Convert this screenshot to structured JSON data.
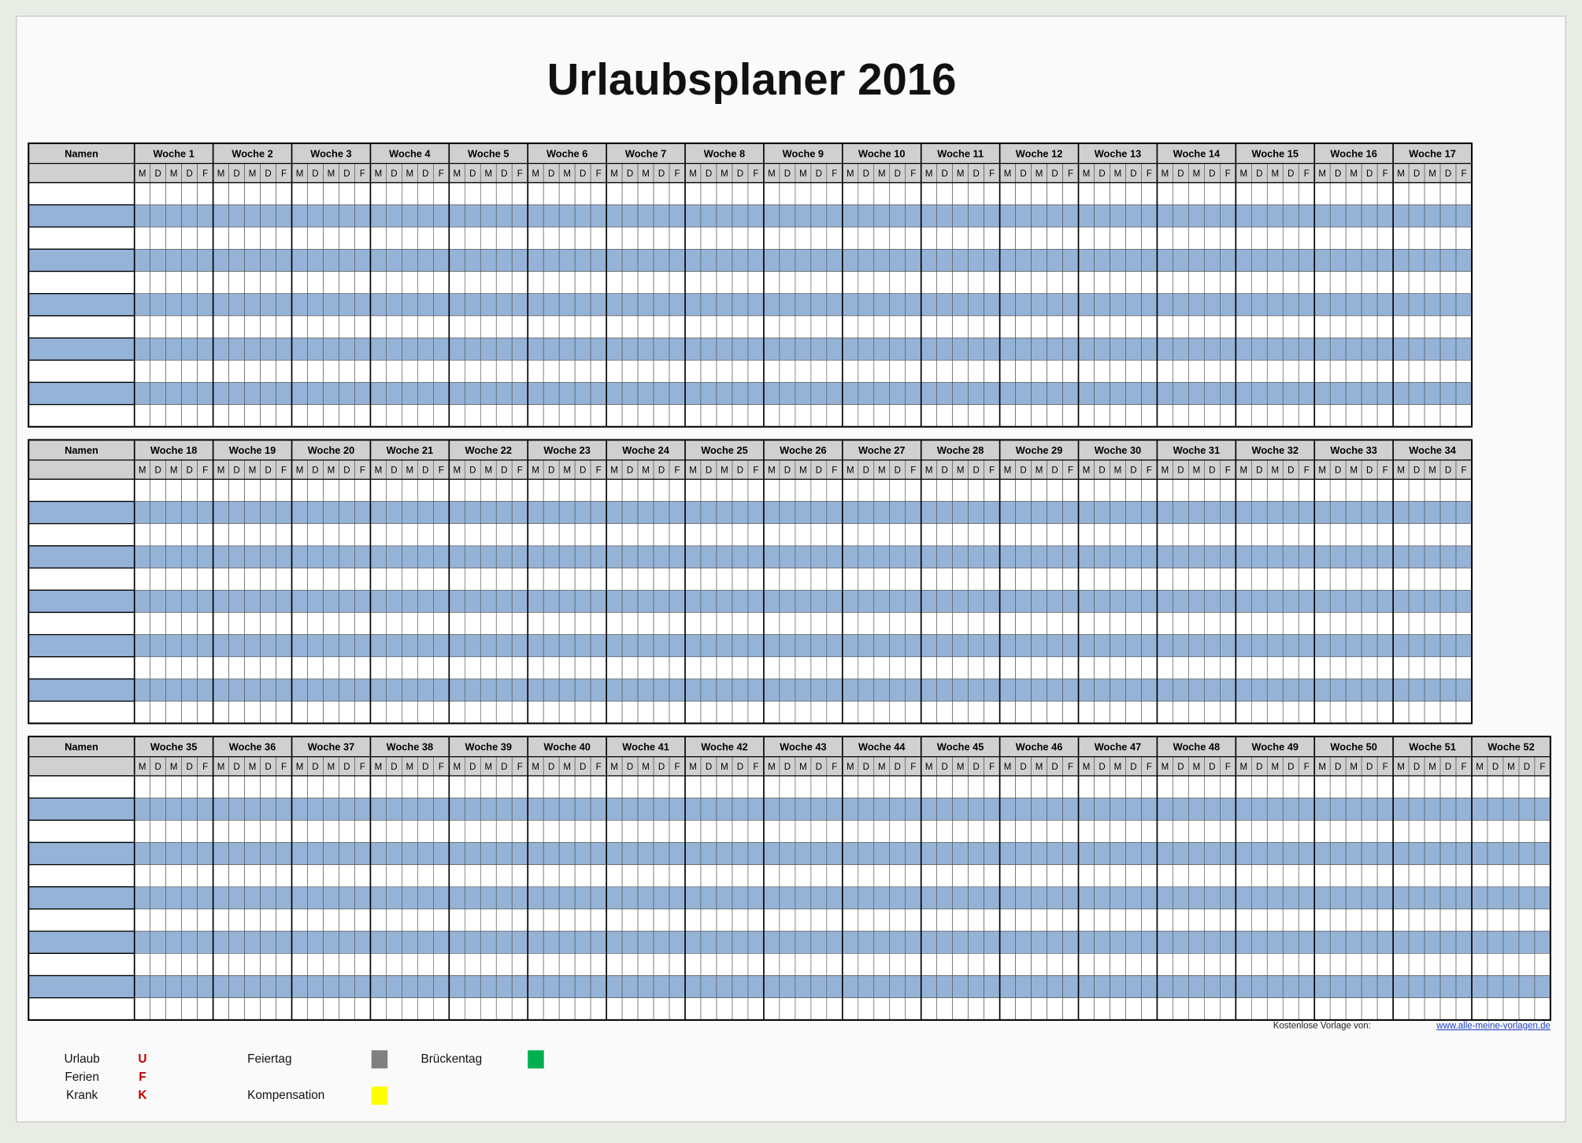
{
  "header": {
    "title": "Urlaubsplaner 2016"
  },
  "days": [
    "M",
    "D",
    "M",
    "D",
    "F"
  ],
  "blocks": [
    {
      "name_header": "Namen",
      "weeks": [
        "Woche 1",
        "Woche 2",
        "Woche 3",
        "Woche 4",
        "Woche 5",
        "Woche 6",
        "Woche 7",
        "Woche 8",
        "Woche 9",
        "Woche 10",
        "Woche 11",
        "Woche 12",
        "Woche 13",
        "Woche 14",
        "Woche 15",
        "Woche 16",
        "Woche 17"
      ]
    },
    {
      "name_header": "Namen",
      "weeks": [
        "Woche 18",
        "Woche 19",
        "Woche 20",
        "Woche 21",
        "Woche 22",
        "Woche 23",
        "Woche 24",
        "Woche 25",
        "Woche 26",
        "Woche 27",
        "Woche 28",
        "Woche 29",
        "Woche 30",
        "Woche 31",
        "Woche 32",
        "Woche 33",
        "Woche 34"
      ]
    },
    {
      "name_header": "Namen",
      "weeks": [
        "Woche 35",
        "Woche 36",
        "Woche 37",
        "Woche 38",
        "Woche 39",
        "Woche 40",
        "Woche 41",
        "Woche 42",
        "Woche 43",
        "Woche 44",
        "Woche 45",
        "Woche 46",
        "Woche 47",
        "Woche 48",
        "Woche 49",
        "Woche 50",
        "Woche 51",
        "Woche 52"
      ]
    }
  ],
  "footer": {
    "credit": "Kostenlose Vorlage von:",
    "link": "www.alle-meine-vorlagen.de"
  },
  "legend": {
    "codes": [
      {
        "label": "Urlaub",
        "code": "U"
      },
      {
        "label": "Ferien",
        "code": "F"
      },
      {
        "label": "Krank",
        "code": "K"
      }
    ],
    "colors": [
      {
        "label": "Feiertag",
        "color": "#808080"
      },
      {
        "label": "Kompensation",
        "color": "#ffff00"
      },
      {
        "label": "Brückentag",
        "color": "#00b050"
      }
    ]
  }
}
